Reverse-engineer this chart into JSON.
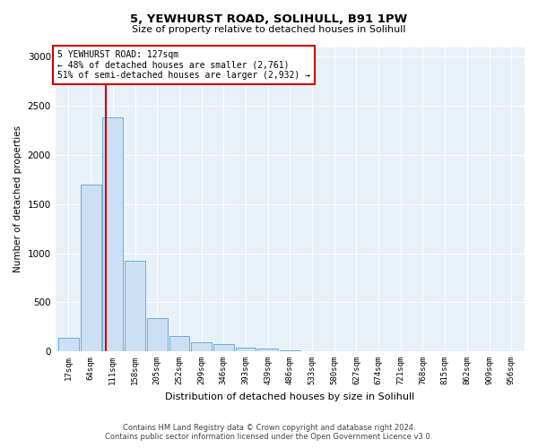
{
  "title1": "5, YEWHURST ROAD, SOLIHULL, B91 1PW",
  "title2": "Size of property relative to detached houses in Solihull",
  "xlabel": "Distribution of detached houses by size in Solihull",
  "ylabel": "Number of detached properties",
  "bin_labels": [
    "17sqm",
    "64sqm",
    "111sqm",
    "158sqm",
    "205sqm",
    "252sqm",
    "299sqm",
    "346sqm",
    "393sqm",
    "439sqm",
    "486sqm",
    "533sqm",
    "580sqm",
    "627sqm",
    "674sqm",
    "721sqm",
    "768sqm",
    "815sqm",
    "862sqm",
    "909sqm",
    "956sqm"
  ],
  "bar_values": [
    140,
    1700,
    2380,
    920,
    340,
    155,
    90,
    75,
    40,
    25,
    10,
    5,
    2,
    0,
    0,
    0,
    0,
    0,
    0,
    0,
    0
  ],
  "bar_color": "#cce0f5",
  "bar_edge_color": "#6aaed6",
  "property_size_bin": 2,
  "property_label": "5 YEWHURST ROAD: 127sqm",
  "annotation_line1": "← 48% of detached houses are smaller (2,761)",
  "annotation_line2": "51% of semi-detached houses are larger (2,932) →",
  "vline_color": "#cc0000",
  "annotation_box_color": "#ffffff",
  "annotation_box_edge": "#cc0000",
  "footer1": "Contains HM Land Registry data © Crown copyright and database right 2024.",
  "footer2": "Contains public sector information licensed under the Open Government Licence v3.0.",
  "ylim": [
    0,
    3100
  ],
  "bin_count": 21
}
